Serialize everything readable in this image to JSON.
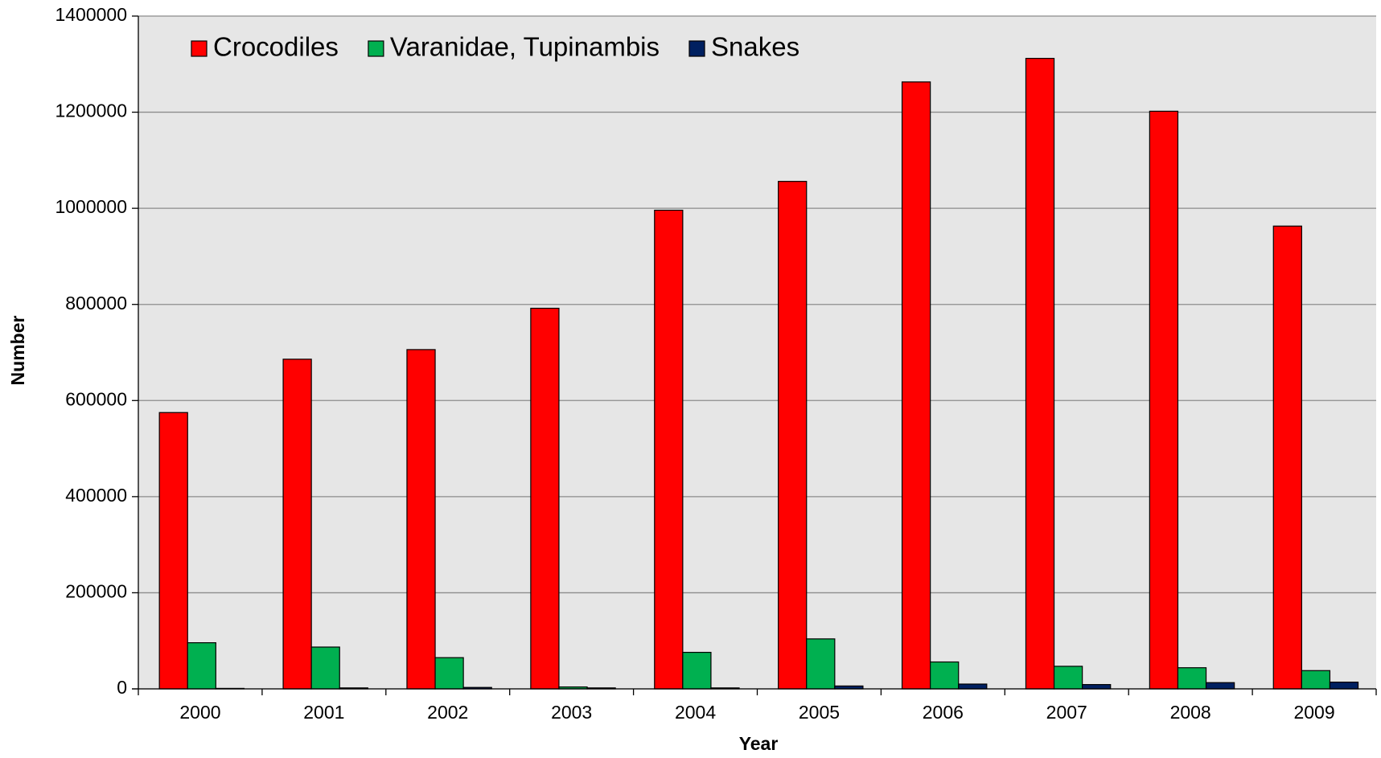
{
  "chart_data": {
    "type": "bar",
    "x_label": "Year",
    "y_label": "Number",
    "categories": [
      "2000",
      "2001",
      "2002",
      "2003",
      "2004",
      "2005",
      "2006",
      "2007",
      "2008",
      "2009"
    ],
    "series": [
      {
        "name": "Crocodiles",
        "color": "#ff0000",
        "values": [
          575000,
          686000,
          706000,
          792000,
          996000,
          1056000,
          1263000,
          1312000,
          1202000,
          963000
        ]
      },
      {
        "name": "Varanidae, Tupinambis",
        "color": "#00b050",
        "values": [
          96000,
          87000,
          65000,
          4000,
          76000,
          104000,
          56000,
          47000,
          44000,
          38000
        ]
      },
      {
        "name": "Snakes",
        "color": "#002060",
        "values": [
          1000,
          2000,
          3000,
          2000,
          2000,
          6000,
          10000,
          9000,
          13000,
          14000
        ]
      }
    ],
    "ylim": [
      0,
      1400000
    ],
    "yticks": [
      0,
      200000,
      400000,
      600000,
      800000,
      1000000,
      1200000,
      1400000
    ],
    "grid": true,
    "legend": "top-left"
  }
}
